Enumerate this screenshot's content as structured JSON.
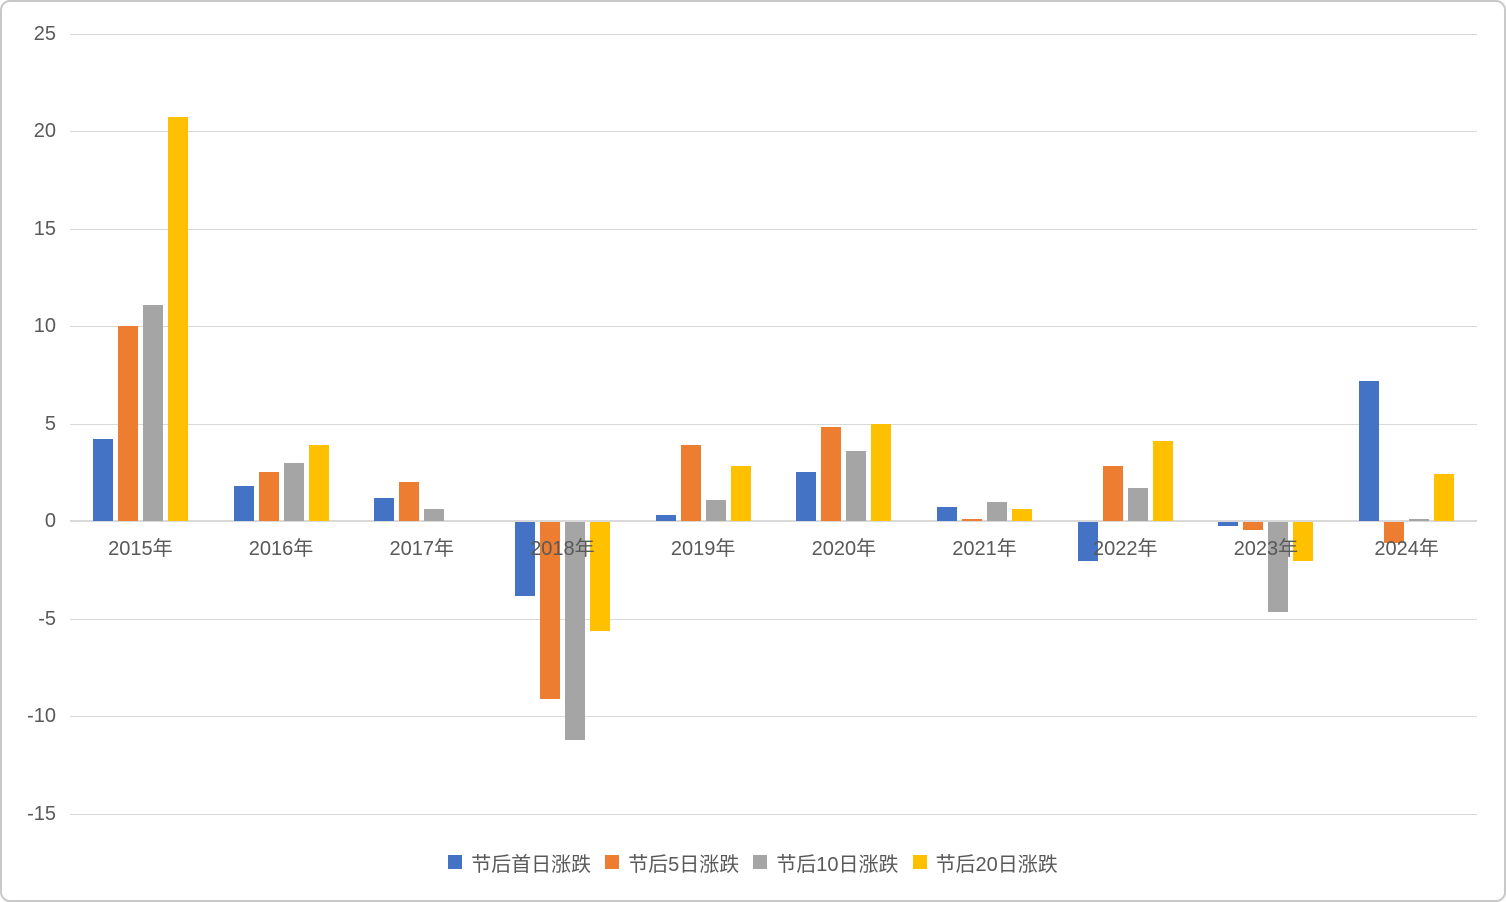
{
  "chart_data": {
    "type": "bar",
    "title": "",
    "xlabel": "",
    "ylabel": "",
    "categories": [
      "2015年",
      "2016年",
      "2017年",
      "2018年",
      "2019年",
      "2020年",
      "2021年",
      "2022年",
      "2023年",
      "2024年"
    ],
    "series": [
      {
        "name": "节后首日涨跌",
        "color": "#4472C4",
        "values": [
          4.2,
          1.8,
          1.2,
          -3.8,
          0.3,
          2.5,
          0.7,
          -2.0,
          -0.2,
          7.2
        ]
      },
      {
        "name": "节后5日涨跌",
        "color": "#ED7D31",
        "values": [
          10.0,
          2.5,
          2.0,
          -9.1,
          3.9,
          4.8,
          0.1,
          2.8,
          -0.4,
          -1.1
        ]
      },
      {
        "name": "节后10日涨跌",
        "color": "#A5A5A5",
        "values": [
          11.1,
          3.0,
          0.6,
          -11.2,
          1.1,
          3.6,
          1.0,
          1.7,
          -4.6,
          0.1
        ]
      },
      {
        "name": "节后20日涨跌",
        "color": "#FFC000",
        "values": [
          20.7,
          3.9,
          0.0,
          -5.6,
          2.8,
          5.0,
          0.6,
          4.1,
          -2.0,
          2.4
        ]
      }
    ],
    "y_ticks": [
      25,
      20,
      15,
      10,
      5,
      0,
      -5,
      -10,
      -15
    ],
    "ylim": [
      -15,
      25
    ],
    "grid": true,
    "legend_position": "bottom",
    "axis_text_color": "#595959",
    "gridline_color": "#D9D9D9"
  }
}
